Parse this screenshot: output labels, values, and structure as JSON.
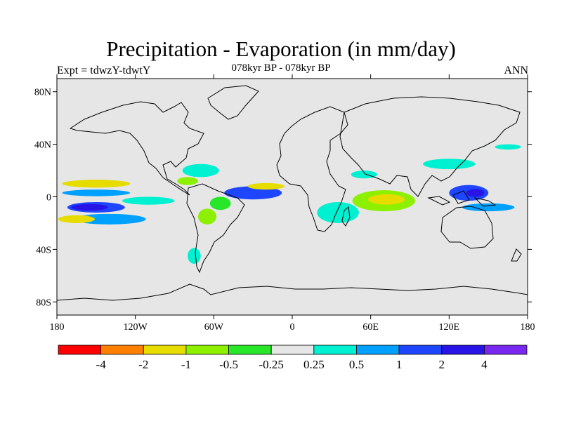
{
  "title": "Precipitation - Evaporation (in mm/day)",
  "subtitle": "078kyr BP - 078kyr BP",
  "left_label": "Expt = tdwzY-tdwtY",
  "right_label": "ANN",
  "map": {
    "projection": "cylindrical-equidistant",
    "lon_range": [
      -180,
      180
    ],
    "lat_range": [
      -90,
      90
    ],
    "background_color": "#e6e6e6",
    "lat_ticks": [
      {
        "value": 80,
        "label": "80N"
      },
      {
        "value": 40,
        "label": "40N"
      },
      {
        "value": 0,
        "label": "0"
      },
      {
        "value": -40,
        "label": "40S"
      },
      {
        "value": -80,
        "label": "80S"
      }
    ],
    "lon_ticks": [
      {
        "value": -180,
        "label": "180"
      },
      {
        "value": -120,
        "label": "120W"
      },
      {
        "value": -60,
        "label": "60W"
      },
      {
        "value": 0,
        "label": "0"
      },
      {
        "value": 60,
        "label": "60E"
      },
      {
        "value": 120,
        "label": "120E"
      },
      {
        "value": 180,
        "label": "180"
      }
    ]
  },
  "colorbar": {
    "colors": [
      "#ff0000",
      "#ff8000",
      "#e6dc00",
      "#8cf000",
      "#28e628",
      "#e6e6e6",
      "#00f0d2",
      "#00a0ff",
      "#1e46ff",
      "#2814e6",
      "#7828f0"
    ],
    "labels": [
      "-4",
      "-2",
      "-1",
      "-0.5",
      "-0.25",
      "0.25",
      "0.5",
      "1",
      "2",
      "4"
    ]
  },
  "anomalies": [
    {
      "lon": -150,
      "lat": -8,
      "rx": 22,
      "ry": 4,
      "color": "#1e46ff"
    },
    {
      "lon": -155,
      "lat": -8,
      "rx": 14,
      "ry": 2.5,
      "color": "#2814e6"
    },
    {
      "lon": -140,
      "lat": -17,
      "rx": 28,
      "ry": 4,
      "color": "#00a0ff"
    },
    {
      "lon": -165,
      "lat": -17,
      "rx": 14,
      "ry": 3,
      "color": "#e6dc00"
    },
    {
      "lon": -150,
      "lat": 10,
      "rx": 26,
      "ry": 3,
      "color": "#e6dc00"
    },
    {
      "lon": -150,
      "lat": 3,
      "rx": 26,
      "ry": 2.5,
      "color": "#00a0ff"
    },
    {
      "lon": -110,
      "lat": -3,
      "rx": 20,
      "ry": 3,
      "color": "#00f0d2"
    },
    {
      "lon": -30,
      "lat": 3,
      "rx": 22,
      "ry": 5,
      "color": "#1e46ff"
    },
    {
      "lon": -20,
      "lat": 8,
      "rx": 14,
      "ry": 2.5,
      "color": "#e6dc00"
    },
    {
      "lon": -55,
      "lat": -5,
      "rx": 8,
      "ry": 5,
      "color": "#28e628"
    },
    {
      "lon": -65,
      "lat": -15,
      "rx": 7,
      "ry": 6,
      "color": "#8cf000"
    },
    {
      "lon": 35,
      "lat": -12,
      "rx": 16,
      "ry": 8,
      "color": "#00f0d2"
    },
    {
      "lon": 70,
      "lat": -3,
      "rx": 24,
      "ry": 8,
      "color": "#8cf000"
    },
    {
      "lon": 72,
      "lat": -2,
      "rx": 14,
      "ry": 4,
      "color": "#e6dc00"
    },
    {
      "lon": 135,
      "lat": 3,
      "rx": 15,
      "ry": 6,
      "color": "#1e46ff"
    },
    {
      "lon": 140,
      "lat": 3,
      "rx": 7,
      "ry": 3,
      "color": "#2814e6"
    },
    {
      "lon": 150,
      "lat": -8,
      "rx": 20,
      "ry": 3,
      "color": "#00a0ff"
    },
    {
      "lon": 120,
      "lat": 25,
      "rx": 20,
      "ry": 4,
      "color": "#00f0d2"
    },
    {
      "lon": 165,
      "lat": 38,
      "rx": 10,
      "ry": 2,
      "color": "#00f0d2"
    },
    {
      "lon": -70,
      "lat": 20,
      "rx": 14,
      "ry": 5,
      "color": "#00f0d2"
    },
    {
      "lon": -80,
      "lat": 12,
      "rx": 8,
      "ry": 3,
      "color": "#8cf000"
    },
    {
      "lon": -75,
      "lat": -45,
      "rx": 5,
      "ry": 6,
      "color": "#00f0d2"
    },
    {
      "lon": 55,
      "lat": 17,
      "rx": 10,
      "ry": 3,
      "color": "#00f0d2"
    }
  ]
}
